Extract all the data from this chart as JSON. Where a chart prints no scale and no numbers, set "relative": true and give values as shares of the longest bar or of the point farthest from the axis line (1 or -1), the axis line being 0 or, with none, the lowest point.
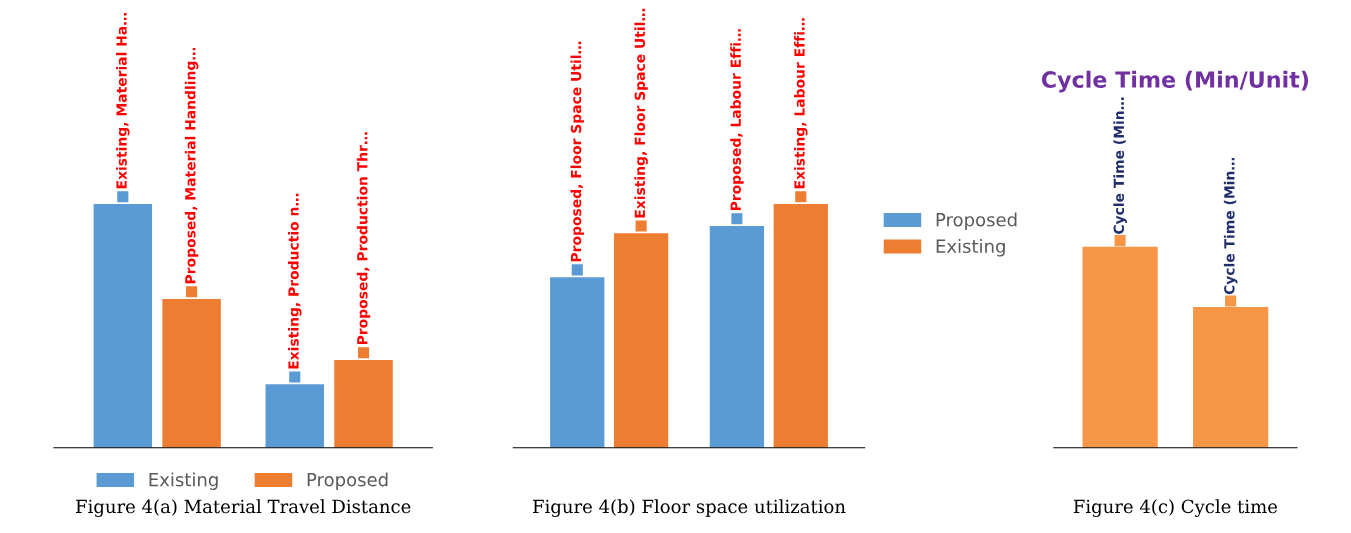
{
  "chart_data": [
    {
      "type": "bar",
      "relative": true,
      "categories": [
        null,
        null
      ],
      "legend": "bottom",
      "series": [
        {
          "name": "Existing",
          "color": "#5b9bd5",
          "values": [
            1,
            0.26
          ]
        },
        {
          "name": "Proposed",
          "color": "#ed7d31",
          "values": [
            0.61,
            0.36
          ]
        }
      ],
      "annotations": [
        {
          "text": "Existing, Material Ha…",
          "y": 1
        },
        {
          "text": "Existing, Productio n…",
          "y": 0.26
        },
        {
          "text": "Proposed, Material Handling…",
          "y": 0.61
        },
        {
          "text": "Proposed, Production Thr…",
          "y": 0.36
        },
        "Figure 4(a) Material Travel Distance"
      ]
    },
    {
      "type": "bar",
      "relative": true,
      "categories": [
        null,
        null
      ],
      "legend": "right",
      "series": [
        {
          "name": "Proposed",
          "color": "#5b9bd5",
          "values": [
            0.7,
            0.91
          ]
        },
        {
          "name": "Existing",
          "color": "#ed7d31",
          "values": [
            0.88,
            1
          ]
        }
      ],
      "annotations": [
        {
          "text": "Proposed, Floor Space Util…",
          "y": 0.7
        },
        {
          "text": "Proposed, Labour Effi…",
          "y": 0.91
        },
        {
          "text": "Existing, Floor Space Util…",
          "y": 0.88
        },
        {
          "text": "Existing, Labour Effi…",
          "y": 1
        },
        "Figure 4(b) Floor space utilization"
      ]
    },
    {
      "type": "bar",
      "relative": true,
      "title": "Cycle Time (Min/Unit)",
      "categories": [
        null,
        null
      ],
      "series": [
        {
          "color": "#f79646",
          "values": [
            1,
            0.7
          ]
        }
      ],
      "annotations": [
        {
          "text": "Cycle Time (Min…",
          "y": 1
        },
        {
          "text": "Cycle Time (Min…",
          "y": 0.7
        },
        "Figure 4(c) Cycle time"
      ]
    }
  ]
}
